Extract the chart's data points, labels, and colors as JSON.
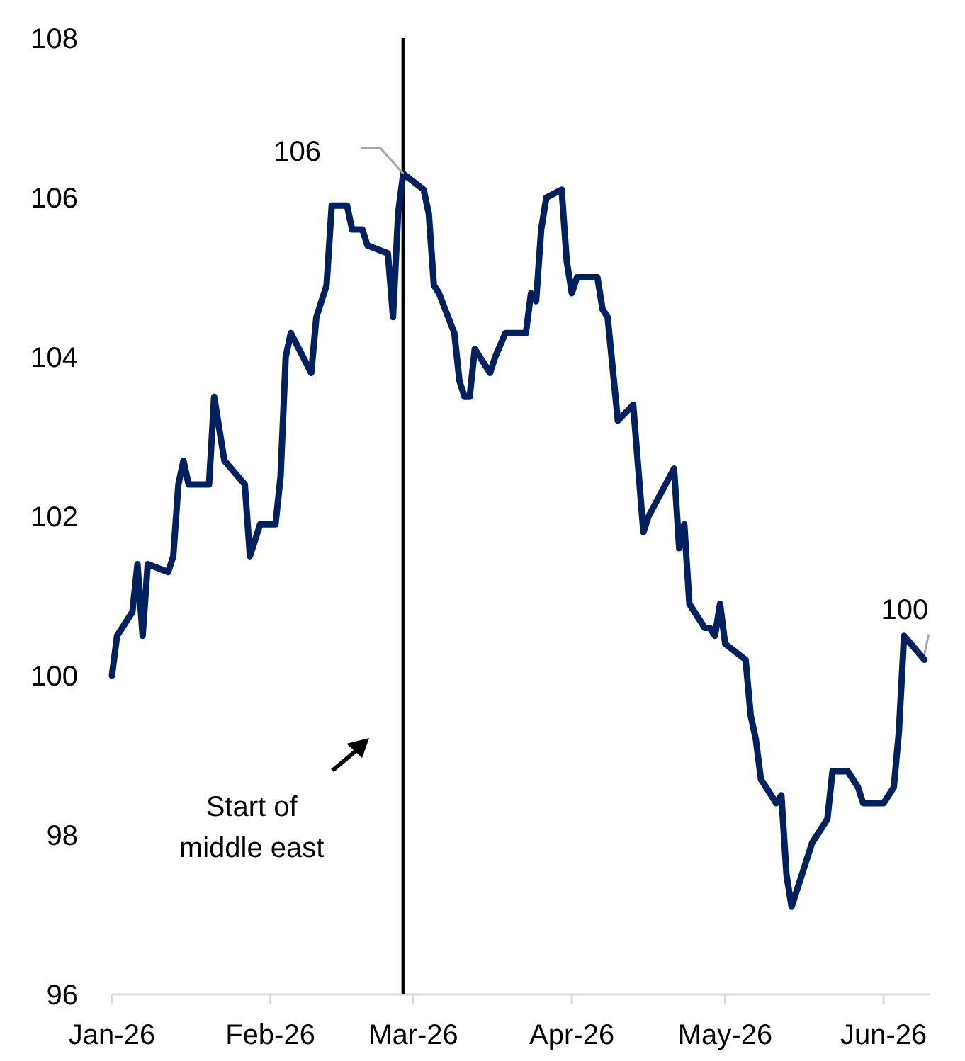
{
  "chart_data": {
    "type": "line",
    "x": [
      "2026-01-01",
      "2026-01-02",
      "2026-01-05",
      "2026-01-06",
      "2026-01-07",
      "2026-01-08",
      "2026-01-12",
      "2026-01-13",
      "2026-01-14",
      "2026-01-15",
      "2026-01-16",
      "2026-01-20",
      "2026-01-21",
      "2026-01-23",
      "2026-01-27",
      "2026-01-28",
      "2026-01-30",
      "2026-02-02",
      "2026-02-03",
      "2026-02-04",
      "2026-02-05",
      "2026-02-09",
      "2026-02-10",
      "2026-02-12",
      "2026-02-13",
      "2026-02-16",
      "2026-02-17",
      "2026-02-19",
      "2026-02-20",
      "2026-02-24",
      "2026-02-25",
      "2026-02-26",
      "2026-02-27",
      "2026-03-03",
      "2026-03-04",
      "2026-03-05",
      "2026-03-06",
      "2026-03-09",
      "2026-03-10",
      "2026-03-11",
      "2026-03-12",
      "2026-03-13",
      "2026-03-16",
      "2026-03-17",
      "2026-03-19",
      "2026-03-23",
      "2026-03-24",
      "2026-03-25",
      "2026-03-26",
      "2026-03-27",
      "2026-03-30",
      "2026-03-31",
      "2026-04-01",
      "2026-04-02",
      "2026-04-06",
      "2026-04-07",
      "2026-04-08",
      "2026-04-10",
      "2026-04-13",
      "2026-04-15",
      "2026-04-16",
      "2026-04-21",
      "2026-04-22",
      "2026-04-23",
      "2026-04-24",
      "2026-04-27",
      "2026-04-28",
      "2026-04-29",
      "2026-04-30",
      "2026-05-01",
      "2026-05-05",
      "2026-05-06",
      "2026-05-07",
      "2026-05-08",
      "2026-05-11",
      "2026-05-12",
      "2026-05-13",
      "2026-05-14",
      "2026-05-18",
      "2026-05-20",
      "2026-05-21",
      "2026-05-22",
      "2026-05-25",
      "2026-05-27",
      "2026-05-28",
      "2026-06-01",
      "2026-06-03",
      "2026-06-04",
      "2026-06-05",
      "2026-06-09"
    ],
    "series": [
      {
        "color": "#002060",
        "values": [
          100.0,
          100.5,
          100.8,
          101.4,
          100.5,
          101.4,
          101.3,
          101.5,
          102.4,
          102.7,
          102.4,
          102.4,
          103.5,
          102.7,
          102.4,
          101.5,
          101.9,
          101.9,
          102.5,
          104.0,
          104.3,
          103.8,
          104.5,
          104.9,
          105.9,
          105.9,
          105.6,
          105.6,
          105.4,
          105.3,
          104.5,
          105.8,
          106.3,
          106.1,
          105.8,
          104.9,
          104.8,
          104.3,
          103.7,
          103.5,
          103.5,
          104.1,
          103.8,
          104.0,
          104.3,
          104.3,
          104.8,
          104.7,
          105.6,
          106.0,
          106.1,
          105.2,
          104.8,
          105.0,
          105.0,
          104.6,
          104.5,
          103.2,
          103.4,
          101.8,
          102.0,
          102.6,
          101.6,
          101.9,
          100.9,
          100.6,
          100.6,
          100.5,
          100.9,
          100.4,
          100.2,
          99.5,
          99.2,
          98.7,
          98.4,
          98.5,
          97.5,
          97.1,
          97.9,
          98.1,
          98.2,
          98.8,
          98.8,
          98.6,
          98.4,
          98.4,
          98.6,
          99.3,
          100.5,
          100.2
        ]
      }
    ],
    "xlim": [
      "2026-01-01",
      "2026-06-10"
    ],
    "xticks": [
      {
        "value": "2026-01-01",
        "label": "Jan-26"
      },
      {
        "value": "2026-02-01",
        "label": "Feb-26"
      },
      {
        "value": "2026-03-01",
        "label": "Mar-26"
      },
      {
        "value": "2026-04-01",
        "label": "Apr-26"
      },
      {
        "value": "2026-05-01",
        "label": "May-26"
      },
      {
        "value": "2026-06-01",
        "label": "Jun-26"
      }
    ],
    "ylim": [
      96,
      108
    ],
    "yticks": [
      96,
      98,
      100,
      102,
      104,
      106,
      108
    ],
    "grid": false,
    "marker": "none",
    "line_style": "solid",
    "ref_lines": [
      {
        "axis": "x",
        "value": "2026-02-27",
        "label": "Start of middle east",
        "color": "#000000"
      }
    ],
    "annotations": [
      {
        "text": "106",
        "x": "2026-02-27",
        "y": 106.3
      },
      {
        "text": "100",
        "x": "2026-06-09",
        "y": 100.2
      }
    ]
  }
}
